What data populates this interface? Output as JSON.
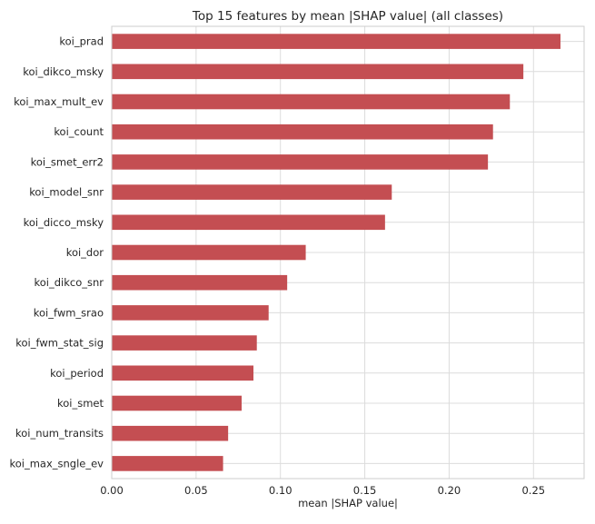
{
  "chart_data": {
    "type": "bar",
    "orientation": "horizontal",
    "title": "Top 15 features by mean |SHAP value| (all classes)",
    "xlabel": "mean |SHAP value|",
    "ylabel": "",
    "xlim": [
      0,
      0.28
    ],
    "xticks": [
      0.0,
      0.05,
      0.1,
      0.15,
      0.2,
      0.25
    ],
    "xtick_labels": [
      "0.00",
      "0.05",
      "0.10",
      "0.15",
      "0.20",
      "0.25"
    ],
    "grid": true,
    "bar_color": "#c44e52",
    "categories": [
      "koi_prad",
      "koi_dikco_msky",
      "koi_max_mult_ev",
      "koi_count",
      "koi_smet_err2",
      "koi_model_snr",
      "koi_dicco_msky",
      "koi_dor",
      "koi_dikco_snr",
      "koi_fwm_srao",
      "koi_fwm_stat_sig",
      "koi_period",
      "koi_smet",
      "koi_num_transits",
      "koi_max_sngle_ev"
    ],
    "values": [
      0.266,
      0.244,
      0.236,
      0.226,
      0.223,
      0.166,
      0.162,
      0.115,
      0.104,
      0.093,
      0.086,
      0.084,
      0.077,
      0.069,
      0.066
    ]
  }
}
